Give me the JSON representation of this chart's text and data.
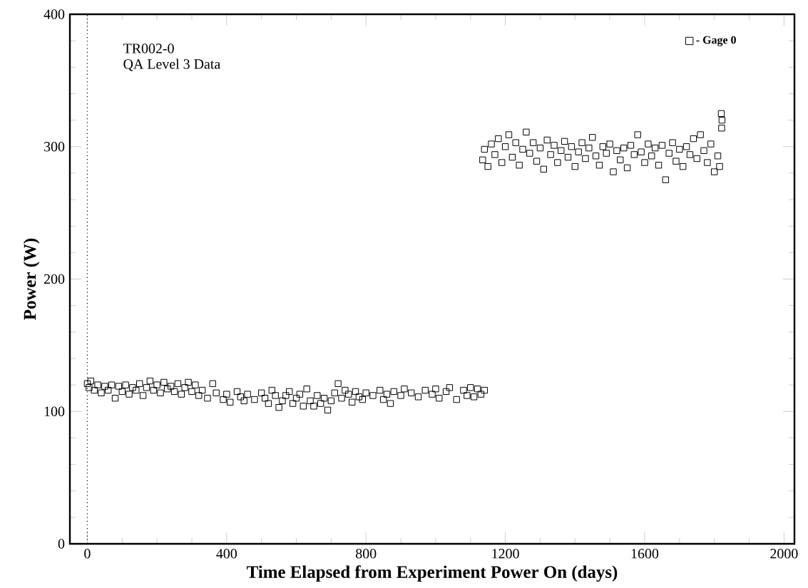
{
  "chart_data": {
    "type": "scatter",
    "xlabel": "Time Elapsed from Experiment Power On (days)",
    "ylabel": "Power (W)",
    "annotations": [
      "TR002-0",
      "QA Level 3 Data"
    ],
    "xlim": [
      -50,
      2030
    ],
    "ylim": [
      0,
      400
    ],
    "xticks": [
      0,
      400,
      800,
      1200,
      1600,
      2000
    ],
    "yticks": [
      0,
      100,
      200,
      300,
      400
    ],
    "grid": false,
    "legend": "top right",
    "marker": "square",
    "ref_lines": [
      {
        "axis": "x",
        "value": 0,
        "line_style": "dotted"
      }
    ],
    "series": [
      {
        "name": "- Gage 0",
        "color": "#000000",
        "x": [
          0,
          5,
          10,
          20,
          30,
          40,
          50,
          60,
          70,
          80,
          90,
          100,
          110,
          120,
          130,
          140,
          150,
          160,
          170,
          180,
          190,
          200,
          210,
          220,
          230,
          240,
          250,
          260,
          270,
          280,
          290,
          300,
          310,
          320,
          330,
          345,
          360,
          370,
          390,
          400,
          410,
          430,
          440,
          450,
          460,
          480,
          500,
          510,
          520,
          530,
          540,
          550,
          560,
          570,
          580,
          590,
          600,
          610,
          620,
          630,
          640,
          650,
          660,
          670,
          680,
          690,
          700,
          710,
          720,
          730,
          740,
          750,
          760,
          770,
          780,
          790,
          800,
          820,
          840,
          850,
          860,
          870,
          880,
          900,
          910,
          930,
          950,
          970,
          990,
          1000,
          1010,
          1030,
          1040,
          1060,
          1080,
          1090,
          1100,
          1110,
          1120,
          1130,
          1140,
          1135,
          1140,
          1150,
          1160,
          1170,
          1180,
          1190,
          1200,
          1210,
          1220,
          1230,
          1240,
          1250,
          1260,
          1270,
          1280,
          1290,
          1300,
          1310,
          1320,
          1330,
          1340,
          1350,
          1360,
          1370,
          1380,
          1390,
          1400,
          1410,
          1420,
          1430,
          1440,
          1450,
          1460,
          1470,
          1480,
          1490,
          1500,
          1510,
          1520,
          1530,
          1540,
          1550,
          1560,
          1570,
          1580,
          1590,
          1600,
          1610,
          1620,
          1630,
          1640,
          1650,
          1660,
          1670,
          1680,
          1690,
          1700,
          1710,
          1720,
          1730,
          1740,
          1750,
          1760,
          1770,
          1780,
          1790,
          1800,
          1810,
          1815,
          1820,
          1822,
          1821
        ],
        "values": [
          121,
          118,
          123,
          116,
          120,
          114,
          119,
          116,
          120,
          110,
          119,
          115,
          120,
          113,
          118,
          116,
          121,
          112,
          118,
          123,
          116,
          120,
          114,
          122,
          117,
          119,
          115,
          121,
          113,
          118,
          122,
          115,
          120,
          112,
          116,
          110,
          121,
          114,
          109,
          113,
          107,
          115,
          111,
          108,
          113,
          109,
          114,
          110,
          106,
          116,
          112,
          103,
          108,
          112,
          115,
          106,
          110,
          113,
          104,
          117,
          108,
          104,
          112,
          106,
          110,
          101,
          108,
          114,
          121,
          110,
          116,
          113,
          107,
          115,
          111,
          109,
          114,
          112,
          116,
          109,
          113,
          106,
          115,
          112,
          117,
          114,
          111,
          116,
          113,
          117,
          110,
          115,
          118,
          109,
          116,
          112,
          118,
          111,
          117,
          113,
          116,
          290,
          298,
          285,
          302,
          294,
          306,
          288,
          300,
          309,
          292,
          303,
          286,
          298,
          311,
          295,
          303,
          289,
          299,
          283,
          305,
          294,
          301,
          288,
          297,
          304,
          292,
          300,
          285,
          296,
          303,
          291,
          299,
          307,
          293,
          286,
          300,
          295,
          302,
          281,
          297,
          290,
          299,
          284,
          301,
          294,
          309,
          296,
          288,
          302,
          293,
          299,
          286,
          301,
          275,
          295,
          303,
          289,
          298,
          285,
          300,
          294,
          306,
          291,
          309,
          297,
          288,
          302,
          281,
          293,
          285,
          325,
          320,
          314
        ]
      }
    ]
  }
}
